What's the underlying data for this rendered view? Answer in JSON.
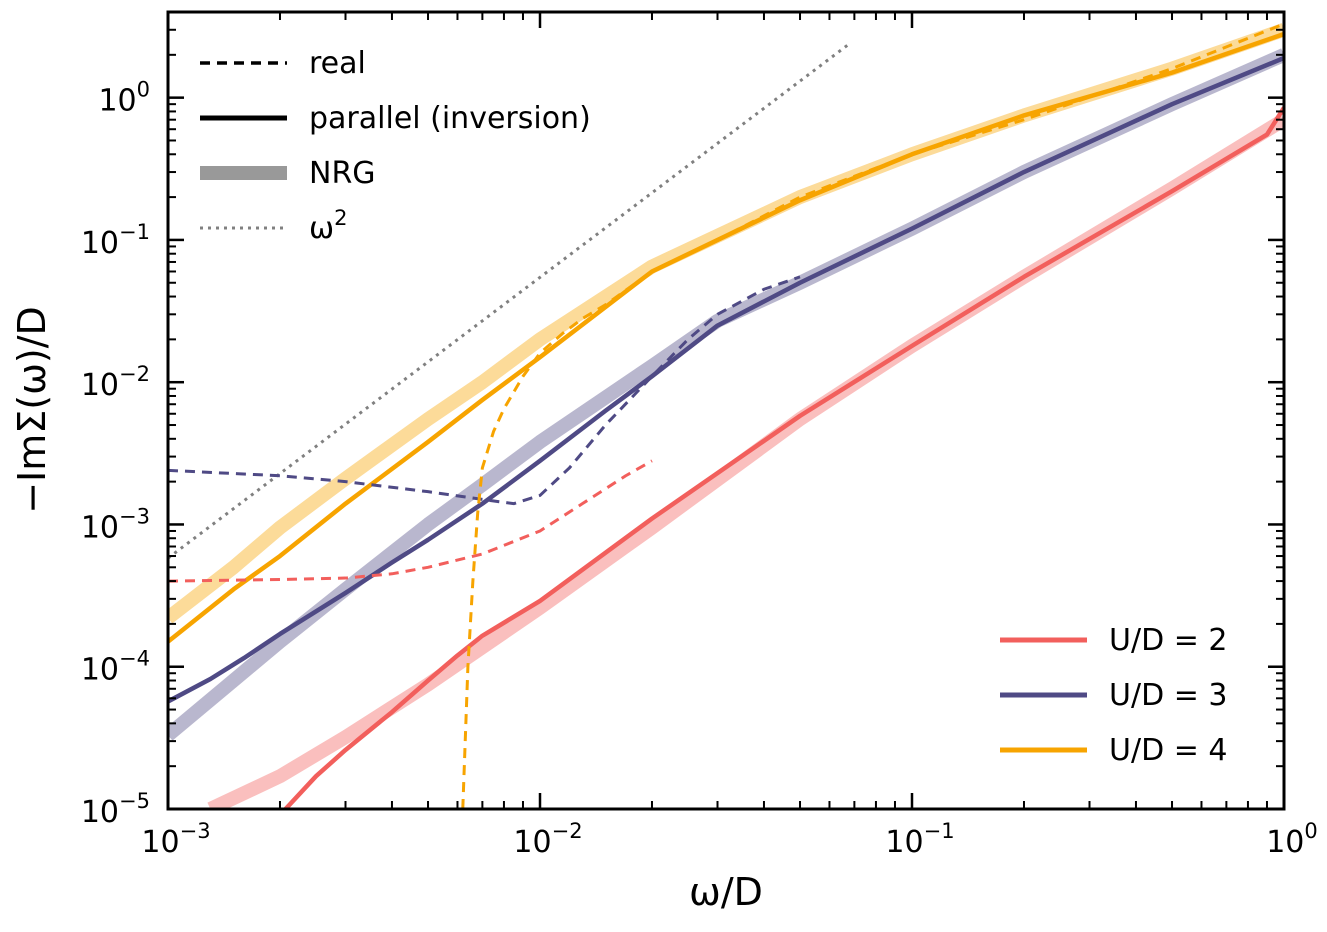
{
  "chart_data": {
    "type": "line",
    "xscale": "log",
    "yscale": "log",
    "xlim": [
      0.001,
      1
    ],
    "ylim": [
      1e-05,
      4
    ],
    "xlabel": "ω/D",
    "ylabel": "−ImΣ(ω)/D",
    "x_ticks": [
      {
        "value": 0.001,
        "base": "10",
        "exp": "−3"
      },
      {
        "value": 0.01,
        "base": "10",
        "exp": "−2"
      },
      {
        "value": 0.1,
        "base": "10",
        "exp": "−1"
      },
      {
        "value": 1,
        "base": "10",
        "exp": "0"
      }
    ],
    "y_ticks": [
      {
        "value": 1e-05,
        "base": "10",
        "exp": "−5"
      },
      {
        "value": 0.0001,
        "base": "10",
        "exp": "−4"
      },
      {
        "value": 0.001,
        "base": "10",
        "exp": "−3"
      },
      {
        "value": 0.01,
        "base": "10",
        "exp": "−2"
      },
      {
        "value": 0.1,
        "base": "10",
        "exp": "−1"
      },
      {
        "value": 1,
        "base": "10",
        "exp": "0"
      }
    ],
    "style_legend": [
      {
        "label": "real",
        "style": "dashed"
      },
      {
        "label": "parallel (inversion)",
        "style": "solid"
      },
      {
        "label": "NRG",
        "style": "thick"
      },
      {
        "label": "ω",
        "sup": "2",
        "style": "dotted"
      }
    ],
    "color_legend": [
      {
        "label": "U/D = 2",
        "color": "#f25f5c"
      },
      {
        "label": "U/D = 3",
        "color": "#4f4a85"
      },
      {
        "label": "U/D = 4",
        "color": "#f7a400"
      }
    ],
    "reference": {
      "name": "ω^2",
      "color": "#808080",
      "x": [
        0.001,
        0.068
      ],
      "y": [
        0.00058,
        2.4
      ]
    },
    "series": [
      {
        "name": "U/D = 2 NRG",
        "kind": "nrg",
        "color": "#f25f5c",
        "x": [
          0.0013,
          0.002,
          0.003,
          0.005,
          0.01,
          0.02,
          0.05,
          0.1,
          0.2,
          0.5,
          1.0
        ],
        "y": [
          1e-05,
          1.7e-05,
          3.2e-05,
          7.5e-05,
          0.00026,
          0.00095,
          0.0055,
          0.018,
          0.055,
          0.23,
          0.7
        ]
      },
      {
        "name": "U/D = 2 parallel (inversion)",
        "kind": "solid",
        "color": "#f25f5c",
        "x": [
          0.00207,
          0.0025,
          0.003,
          0.004,
          0.005,
          0.006,
          0.007,
          0.01,
          0.02,
          0.05,
          0.1,
          0.2,
          0.5,
          0.9,
          1.0
        ],
        "y": [
          1e-05,
          1.7e-05,
          2.6e-05,
          4.8e-05,
          8e-05,
          0.00012,
          0.000165,
          0.00029,
          0.0011,
          0.0058,
          0.018,
          0.055,
          0.22,
          0.55,
          0.85
        ]
      },
      {
        "name": "U/D = 2 real",
        "kind": "dashed",
        "color": "#f25f5c",
        "x": [
          0.001,
          0.002,
          0.003,
          0.004,
          0.005,
          0.007,
          0.01,
          0.013,
          0.017,
          0.02
        ],
        "y": [
          0.0004,
          0.00041,
          0.00042,
          0.00045,
          0.0005,
          0.00062,
          0.0009,
          0.0014,
          0.0022,
          0.0028
        ]
      },
      {
        "name": "U/D = 3 NRG",
        "kind": "nrg",
        "color": "#4f4a85",
        "x": [
          0.001,
          0.0015,
          0.002,
          0.003,
          0.005,
          0.007,
          0.01,
          0.02,
          0.03,
          0.05,
          0.1,
          0.2,
          0.5,
          1.0
        ],
        "y": [
          3.3e-05,
          8e-05,
          0.00015,
          0.00035,
          0.001,
          0.0019,
          0.0038,
          0.013,
          0.027,
          0.05,
          0.12,
          0.3,
          0.9,
          2.0
        ]
      },
      {
        "name": "U/D = 3 parallel (inversion)",
        "kind": "solid",
        "color": "#4f4a85",
        "x": [
          0.001,
          0.0013,
          0.0016,
          0.002,
          0.003,
          0.004,
          0.005,
          0.007,
          0.01,
          0.015,
          0.02,
          0.03,
          0.05,
          0.1,
          0.2,
          0.5,
          1.0
        ],
        "y": [
          5.7e-05,
          8.2e-05,
          0.000115,
          0.00017,
          0.00033,
          0.00054,
          0.00078,
          0.0014,
          0.0028,
          0.0063,
          0.011,
          0.025,
          0.05,
          0.12,
          0.3,
          0.9,
          1.9
        ]
      },
      {
        "name": "U/D = 3 real",
        "kind": "dashed",
        "color": "#4f4a85",
        "x": [
          0.001,
          0.002,
          0.003,
          0.005,
          0.007,
          0.0085,
          0.01,
          0.012,
          0.015,
          0.02,
          0.025,
          0.03,
          0.04,
          0.05
        ],
        "y": [
          0.0024,
          0.0022,
          0.002,
          0.0017,
          0.0015,
          0.0014,
          0.0016,
          0.0025,
          0.005,
          0.011,
          0.02,
          0.03,
          0.045,
          0.055
        ]
      },
      {
        "name": "U/D = 4 NRG",
        "kind": "nrg",
        "color": "#f7a400",
        "x": [
          0.001,
          0.0015,
          0.002,
          0.003,
          0.005,
          0.007,
          0.01,
          0.02,
          0.05,
          0.1,
          0.2,
          0.5,
          1.0
        ],
        "y": [
          0.00022,
          0.0005,
          0.00095,
          0.0021,
          0.0055,
          0.01,
          0.02,
          0.065,
          0.2,
          0.4,
          0.75,
          1.6,
          3.0
        ]
      },
      {
        "name": "U/D = 4 parallel (inversion)",
        "kind": "solid",
        "color": "#f7a400",
        "x": [
          0.001,
          0.0015,
          0.002,
          0.003,
          0.005,
          0.007,
          0.01,
          0.02,
          0.05,
          0.1,
          0.2,
          0.5,
          1.0
        ],
        "y": [
          0.00015,
          0.00035,
          0.0006,
          0.0014,
          0.0038,
          0.0075,
          0.015,
          0.06,
          0.19,
          0.4,
          0.75,
          1.5,
          2.8
        ]
      },
      {
        "name": "U/D = 4 real",
        "kind": "dashed",
        "color": "#f7a400",
        "x": [
          0.0062,
          0.0064,
          0.0066,
          0.0068,
          0.007,
          0.0075,
          0.008,
          0.009,
          0.01,
          0.0115,
          0.013,
          0.015,
          0.02,
          0.03,
          0.05,
          0.1,
          0.2,
          0.5,
          1.0
        ],
        "y": [
          1e-05,
          0.0001,
          0.0004,
          0.0012,
          0.0025,
          0.0045,
          0.0065,
          0.011,
          0.016,
          0.022,
          0.028,
          0.035,
          0.06,
          0.1,
          0.2,
          0.4,
          0.7,
          1.6,
          3.3
        ]
      }
    ]
  }
}
